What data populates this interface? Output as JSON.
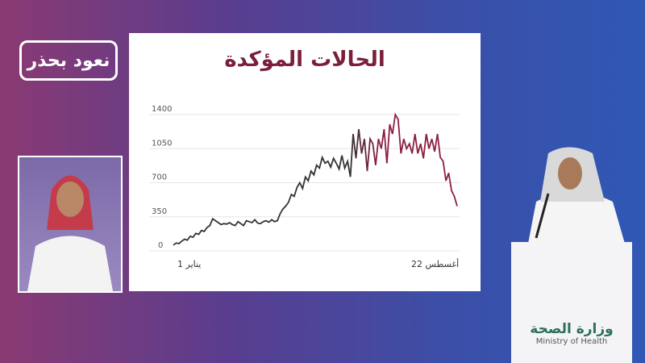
{
  "logo": {
    "text": "نعود بحذر"
  },
  "podium": {
    "arabic": "وزارة الصحة",
    "english": "Ministry of Health"
  },
  "colors": {
    "title": "#7a1f3a",
    "line_early": "#333333",
    "line_late": "#8b2040"
  },
  "chart_data": {
    "type": "line",
    "title": "الحالات المؤكدة",
    "x_start_label": "1 يناير",
    "x_end_label": "22 أغسطس",
    "yticks": [
      0,
      350,
      700,
      1050,
      1400
    ],
    "ylim": [
      0,
      1400
    ],
    "grid": true,
    "values": [
      60,
      80,
      75,
      100,
      120,
      110,
      150,
      140,
      180,
      170,
      210,
      200,
      240,
      260,
      330,
      310,
      290,
      270,
      280,
      275,
      290,
      270,
      260,
      300,
      280,
      260,
      310,
      300,
      290,
      320,
      285,
      280,
      300,
      310,
      295,
      320,
      300,
      310,
      380,
      430,
      460,
      500,
      580,
      560,
      650,
      700,
      640,
      760,
      720,
      820,
      780,
      880,
      850,
      960,
      900,
      920,
      860,
      950,
      900,
      840,
      980,
      850,
      920,
      760,
      1200,
      950,
      1250,
      1000,
      1150,
      820,
      1150,
      1100,
      880,
      1150,
      1050,
      1250,
      900,
      1300,
      1200,
      1400,
      1350,
      1000,
      1150,
      1050,
      1100,
      1000,
      1200,
      1000,
      1100,
      950,
      1200,
      1050,
      1150,
      1020,
      1200,
      960,
      920,
      720,
      800,
      620,
      560,
      460
    ]
  }
}
